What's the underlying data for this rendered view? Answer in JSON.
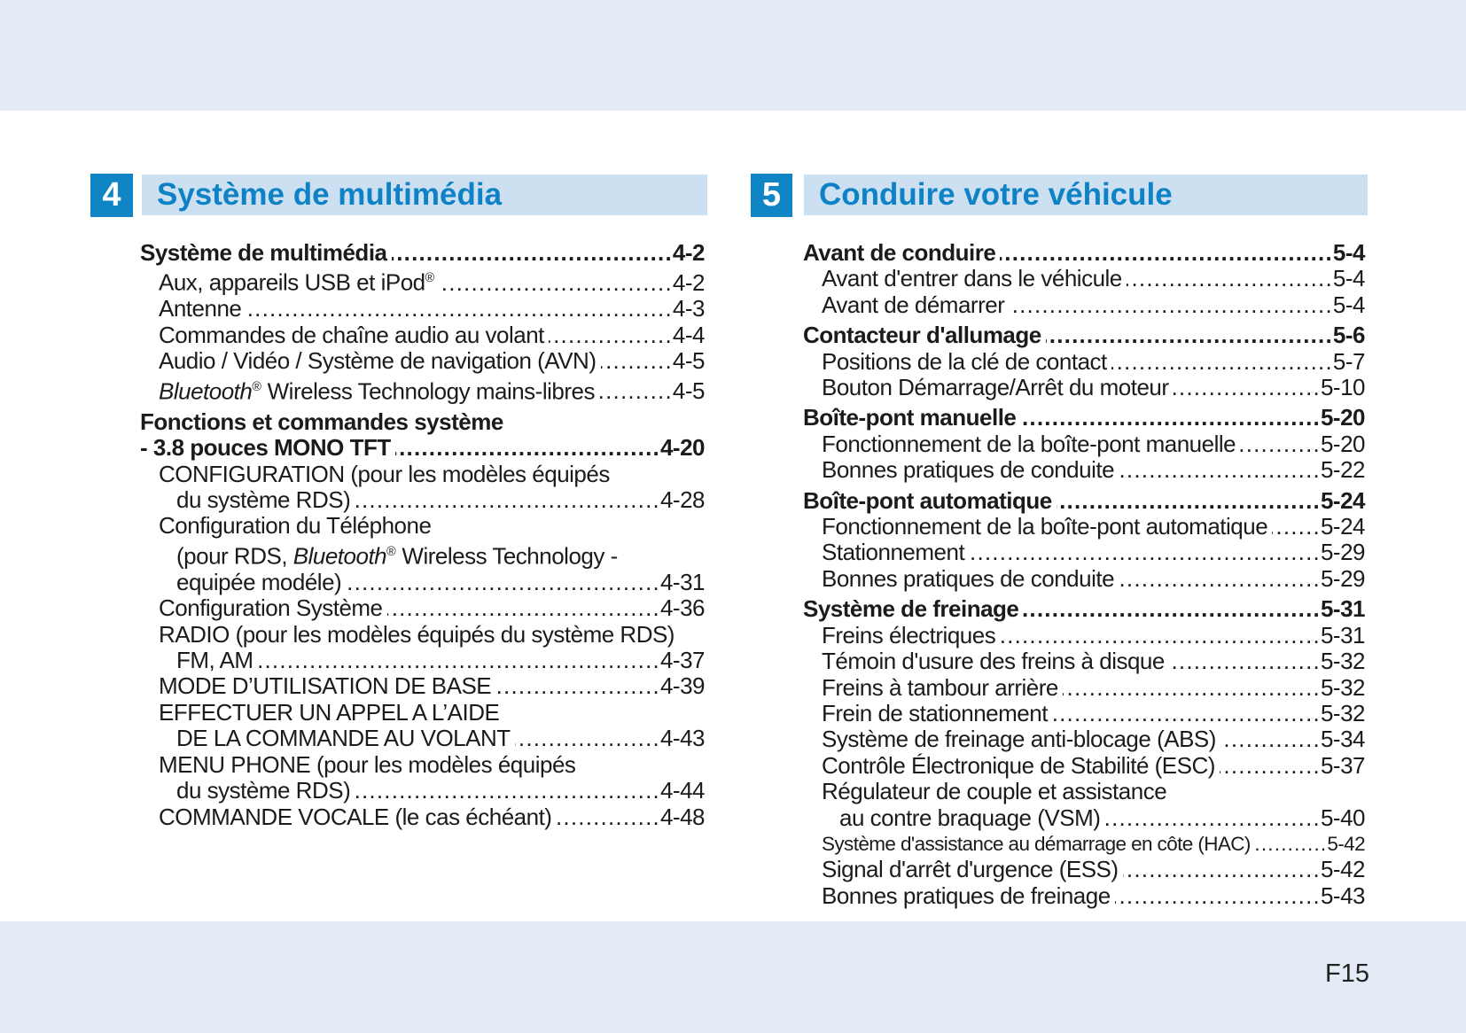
{
  "page": {
    "footer": "F15"
  },
  "colors": {
    "badge_blue": "#0f85c6",
    "header_bar_bg": "#cde0f2",
    "header_title_blue": "#0e82c4",
    "margin_band_blue": "#e2ebf6",
    "body_text": "#1b1b1b"
  },
  "sections": [
    {
      "number": "4",
      "title": "Système de multimédia",
      "entries": [
        {
          "indent": 0,
          "bold": true,
          "text": "Système de multimédia",
          "page": "4-2"
        },
        {
          "indent": 1,
          "segments": [
            {
              "t": "Aux, appareils USB et iPod"
            },
            {
              "t": "®",
              "s": "sup"
            },
            {
              "t": " "
            }
          ],
          "page": "4-2"
        },
        {
          "indent": 1,
          "text": "Antenne ",
          "page": "4-3"
        },
        {
          "indent": 1,
          "text": "Commandes de chaîne audio au volant ",
          "page": "4-4"
        },
        {
          "indent": 1,
          "text": "Audio / Vidéo / Système de navigation (AVN) ",
          "page": "4-5"
        },
        {
          "indent": 1,
          "segments": [
            {
              "t": "Bluetooth",
              "s": "it"
            },
            {
              "t": "®",
              "s": "sup"
            },
            {
              "t": " Wireless Technology mains-libres "
            }
          ],
          "page": "4-5"
        },
        {
          "indent": 0,
          "bold": true,
          "gap": true,
          "text": "Fonctions et commandes système",
          "page": null
        },
        {
          "indent": 0,
          "bold": true,
          "text": "- 3.8 pouces MONO TFT ",
          "page": "4-20"
        },
        {
          "indent": 1,
          "text": "CONFIGURATION (pour les modèles équipés",
          "page": null
        },
        {
          "indent": 2,
          "text": "du système RDS) ",
          "page": "4-28"
        },
        {
          "indent": 1,
          "text": "Configuration du Téléphone",
          "page": null
        },
        {
          "indent": 2,
          "segments": [
            {
              "t": "(pour RDS, "
            },
            {
              "t": "Bluetooth",
              "s": "it"
            },
            {
              "t": "®",
              "s": "sup"
            },
            {
              "t": " Wireless Technology -"
            }
          ],
          "page": null
        },
        {
          "indent": 2,
          "text": "equipée modéle) ",
          "page": "4-31"
        },
        {
          "indent": 1,
          "text": "Configuration Système ",
          "page": "4-36"
        },
        {
          "indent": 1,
          "text": "RADIO (pour les modèles équipés du système RDS)",
          "page": null
        },
        {
          "indent": 2,
          "text": "FM, AM ",
          "page": "4-37"
        },
        {
          "indent": 1,
          "text": "MODE D’UTILISATION DE BASE ",
          "page": "4-39"
        },
        {
          "indent": 1,
          "text": "EFFECTUER UN APPEL A L’AIDE",
          "page": null
        },
        {
          "indent": 2,
          "text": "DE LA COMMANDE AU VOLANT ",
          "page": "4-43"
        },
        {
          "indent": 1,
          "text": "MENU PHONE (pour les modèles équipés",
          "page": null
        },
        {
          "indent": 2,
          "text": "du système RDS) ",
          "page": "4-44"
        },
        {
          "indent": 1,
          "text": "COMMANDE VOCALE (le cas échéant) ",
          "page": "4-48"
        }
      ]
    },
    {
      "number": "5",
      "title": "Conduire votre véhicule",
      "entries": [
        {
          "indent": 0,
          "bold": true,
          "text": "Avant de conduire ",
          "page": "5-4"
        },
        {
          "indent": 1,
          "text": "Avant d'entrer dans le véhicule  ",
          "page": "5-4"
        },
        {
          "indent": 1,
          "text": "Avant de démarrer ",
          "page": "5-4"
        },
        {
          "indent": 0,
          "bold": true,
          "gap": true,
          "text": "Contacteur d'allumage ",
          "page": "5-6"
        },
        {
          "indent": 1,
          "text": "Positions de la clé de contact",
          "page": "5-7"
        },
        {
          "indent": 1,
          "text": "Bouton Démarrage/Arrêt du moteur ",
          "page": "5-10"
        },
        {
          "indent": 0,
          "bold": true,
          "gap": true,
          "text": "Boîte-pont manuelle ",
          "page": "5-20"
        },
        {
          "indent": 1,
          "text": "Fonctionnement de la boîte-pont manuelle ",
          "page": "5-20"
        },
        {
          "indent": 1,
          "text": "Bonnes pratiques de conduite ",
          "page": "5-22"
        },
        {
          "indent": 0,
          "bold": true,
          "gap": true,
          "text": "Boîte-pont automatique ",
          "page": "5-24"
        },
        {
          "indent": 1,
          "text": "Fonctionnement de la boîte-pont automatique ",
          "page": "5-24"
        },
        {
          "indent": 1,
          "text": "Stationnement ",
          "page": "5-29"
        },
        {
          "indent": 1,
          "text": "Bonnes pratiques de conduite ",
          "page": "5-29"
        },
        {
          "indent": 0,
          "bold": true,
          "gap": true,
          "text": "Système de freinage ",
          "page": "5-31"
        },
        {
          "indent": 1,
          "text": "Freins électriques ",
          "page": "5-31"
        },
        {
          "indent": 1,
          "text": "Témoin d'usure des freins à disque ",
          "page": "5-32"
        },
        {
          "indent": 1,
          "text": "Freins à tambour arrière ",
          "page": "5-32"
        },
        {
          "indent": 1,
          "text": "Frein de stationnement ",
          "page": "5-32"
        },
        {
          "indent": 1,
          "text": "Système de freinage anti-blocage (ABS) ",
          "page": "5-34"
        },
        {
          "indent": 1,
          "text": "Contrôle Électronique de Stabilité (ESC) ",
          "page": "5-37"
        },
        {
          "indent": 1,
          "text": "Régulateur de couple et assistance",
          "page": null
        },
        {
          "indent": 2,
          "text": "au contre braquage (VSM) ",
          "page": "5-40"
        },
        {
          "indent": 1,
          "condensed": true,
          "text": "Système d'assistance au démarrage en côte (HAC)",
          "page": "5-42"
        },
        {
          "indent": 1,
          "text": "Signal d'arrêt d'urgence (ESS) ",
          "page": "5-42"
        },
        {
          "indent": 1,
          "text": "Bonnes pratiques de freinage ",
          "page": "5-43"
        }
      ]
    }
  ]
}
